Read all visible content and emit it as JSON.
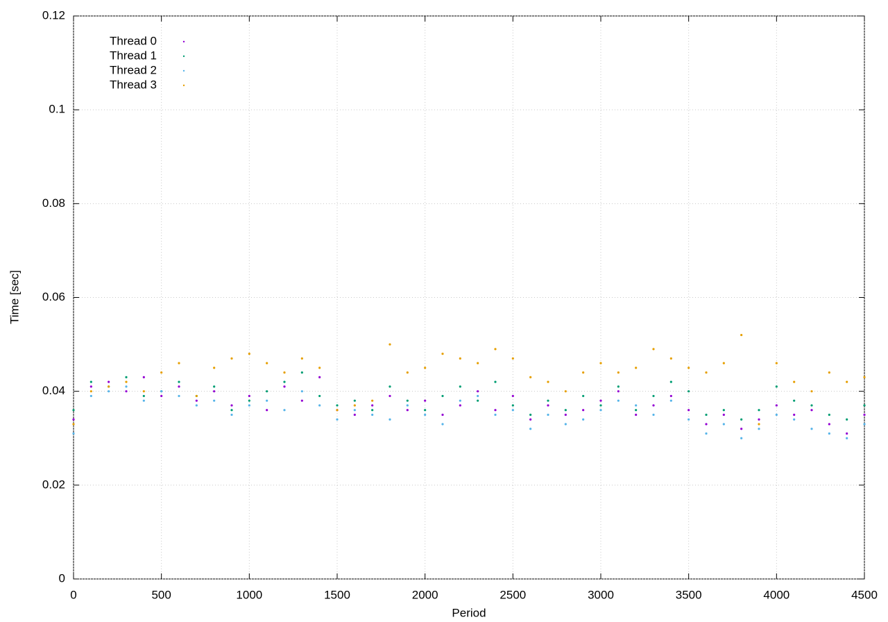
{
  "chart_data": {
    "type": "scatter",
    "x_label": "Period",
    "y_label": "Time [sec]",
    "x": [
      0,
      100,
      200,
      300,
      400,
      500,
      600,
      700,
      800,
      900,
      1000,
      1100,
      1200,
      1300,
      1400,
      1500,
      1600,
      1700,
      1800,
      1900,
      2000,
      2100,
      2200,
      2300,
      2400,
      2500,
      2600,
      2700,
      2800,
      2900,
      3000,
      3100,
      3200,
      3300,
      3400,
      3500,
      3600,
      3700,
      3800,
      3900,
      4000,
      4100,
      4200,
      4300,
      4400,
      4500
    ],
    "series": [
      {
        "name": "Thread 0",
        "color": "#9400d3",
        "values": [
          0.034,
          0.041,
          0.042,
          0.04,
          0.043,
          0.039,
          0.041,
          0.038,
          0.04,
          0.037,
          0.039,
          0.036,
          0.041,
          0.038,
          0.043,
          0.036,
          0.035,
          0.037,
          0.039,
          0.036,
          0.038,
          0.035,
          0.037,
          0.04,
          0.036,
          0.039,
          0.034,
          0.037,
          0.035,
          0.036,
          0.038,
          0.04,
          0.035,
          0.037,
          0.039,
          0.036,
          0.033,
          0.035,
          0.032,
          0.034,
          0.037,
          0.035,
          0.036,
          0.033,
          0.031,
          0.035
        ]
      },
      {
        "name": "Thread 1",
        "color": "#009e73",
        "values": [
          0.036,
          0.042,
          0.041,
          0.043,
          0.039,
          0.04,
          0.042,
          0.039,
          0.041,
          0.036,
          0.038,
          0.04,
          0.042,
          0.044,
          0.039,
          0.037,
          0.038,
          0.036,
          0.041,
          0.038,
          0.036,
          0.039,
          0.041,
          0.038,
          0.042,
          0.037,
          0.035,
          0.038,
          0.036,
          0.039,
          0.037,
          0.041,
          0.036,
          0.039,
          0.042,
          0.04,
          0.035,
          0.036,
          0.034,
          0.036,
          0.041,
          0.038,
          0.037,
          0.035,
          0.034,
          0.037
        ]
      },
      {
        "name": "Thread 2",
        "color": "#56b4e9",
        "values": [
          0.031,
          0.039,
          0.04,
          0.041,
          0.038,
          0.04,
          0.039,
          0.037,
          0.038,
          0.035,
          0.037,
          0.038,
          0.036,
          0.04,
          0.037,
          0.034,
          0.036,
          0.035,
          0.034,
          0.037,
          0.035,
          0.033,
          0.038,
          0.039,
          0.035,
          0.036,
          0.032,
          0.035,
          0.033,
          0.034,
          0.036,
          0.038,
          0.037,
          0.035,
          0.038,
          0.034,
          0.031,
          0.033,
          0.03,
          0.032,
          0.035,
          0.034,
          0.032,
          0.031,
          0.03,
          0.033
        ]
      },
      {
        "name": "Thread 3",
        "color": "#e69f00",
        "values": [
          0.033,
          0.04,
          0.041,
          0.042,
          0.04,
          0.044,
          0.046,
          0.039,
          0.045,
          0.047,
          0.048,
          0.046,
          0.044,
          0.047,
          0.045,
          0.036,
          0.037,
          0.038,
          0.05,
          0.044,
          0.045,
          0.048,
          0.047,
          0.046,
          0.049,
          0.047,
          0.043,
          0.042,
          0.04,
          0.044,
          0.046,
          0.044,
          0.045,
          0.049,
          0.047,
          0.045,
          0.044,
          0.046,
          0.052,
          0.033,
          0.046,
          0.042,
          0.04,
          0.044,
          0.042,
          0.043
        ]
      }
    ],
    "xlim": [
      0,
      4500
    ],
    "xticks": [
      0,
      500,
      1000,
      1500,
      2000,
      2500,
      3000,
      3500,
      4000,
      4500
    ],
    "ylim": [
      0,
      0.12
    ],
    "yticks": [
      0,
      0.02,
      0.04,
      0.06,
      0.08,
      0.1,
      0.12
    ],
    "grid": true,
    "legend": "top-left"
  }
}
